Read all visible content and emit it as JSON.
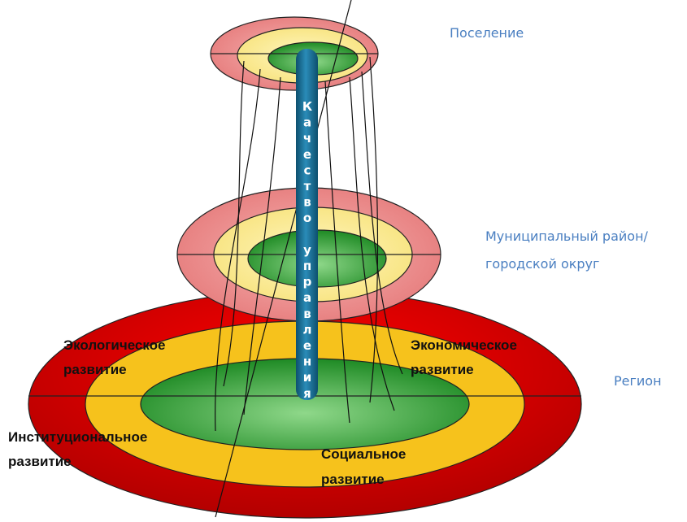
{
  "levels": [
    {
      "lines": [
        "Поселение"
      ]
    },
    {
      "lines": [
        "Муниципальный район/",
        "городской округ"
      ]
    },
    {
      "lines": [
        "Регион"
      ]
    }
  ],
  "axis_label": "Качество управления",
  "directions": [
    {
      "lines": [
        "Экологическое",
        "развитие"
      ]
    },
    {
      "lines": [
        "Экономическое",
        "развитие"
      ]
    },
    {
      "lines": [
        "Институциональное",
        "развитие"
      ]
    },
    {
      "lines": [
        "Социальное",
        "развитие"
      ]
    }
  ]
}
